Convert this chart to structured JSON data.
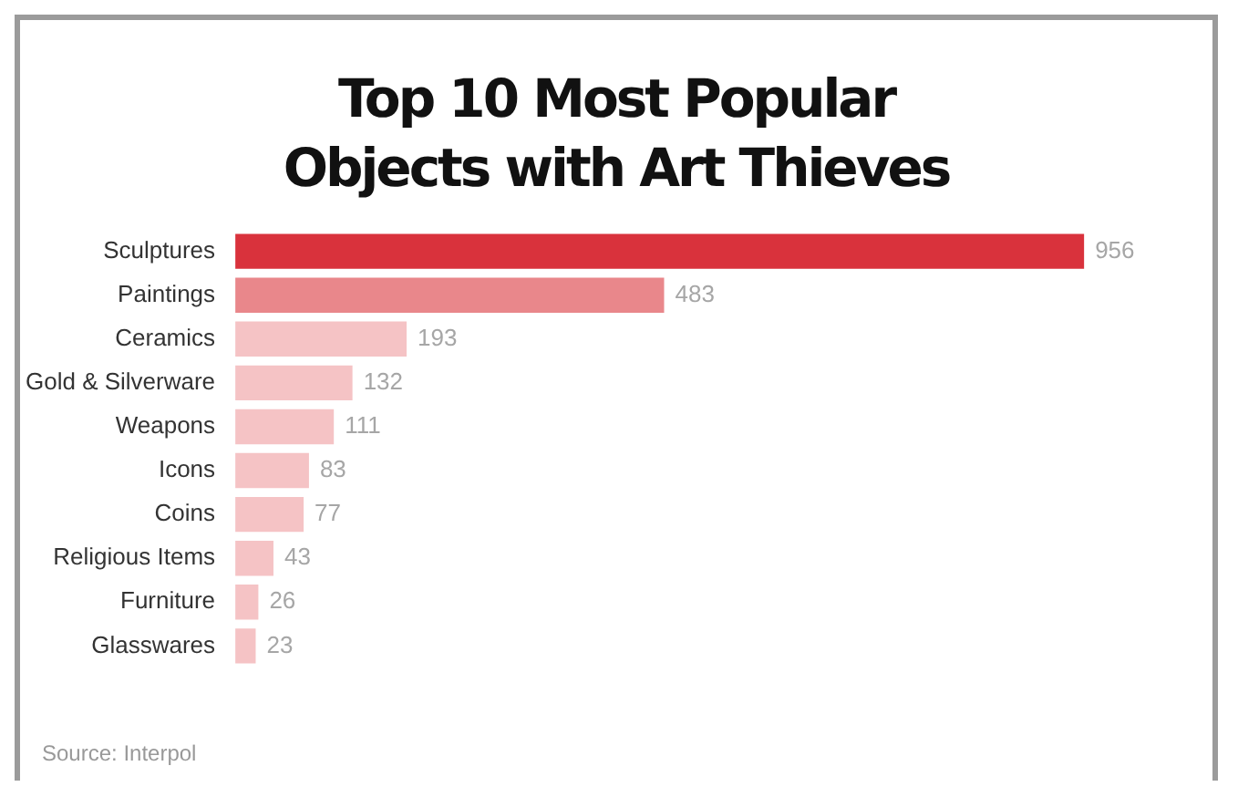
{
  "chart_data": {
    "type": "bar",
    "orientation": "horizontal",
    "title": "Top 10 Most Popular Objects with Art Thieves",
    "categories": [
      "Sculptures",
      "Paintings",
      "Ceramics",
      "Gold & Silverware",
      "Weapons",
      "Icons",
      "Coins",
      "Religious Items",
      "Furniture",
      "Glasswares"
    ],
    "values": [
      956,
      483,
      193,
      132,
      111,
      83,
      77,
      43,
      26,
      23
    ],
    "colors": [
      "#d9323c",
      "#e9878b",
      "#f5c3c5",
      "#f5c3c5",
      "#f5c3c5",
      "#f5c3c5",
      "#f5c3c5",
      "#f5c3c5",
      "#f5c3c5",
      "#f5c3c5"
    ],
    "data_labels": true,
    "annotations": [
      "Source: Interpol"
    ]
  }
}
